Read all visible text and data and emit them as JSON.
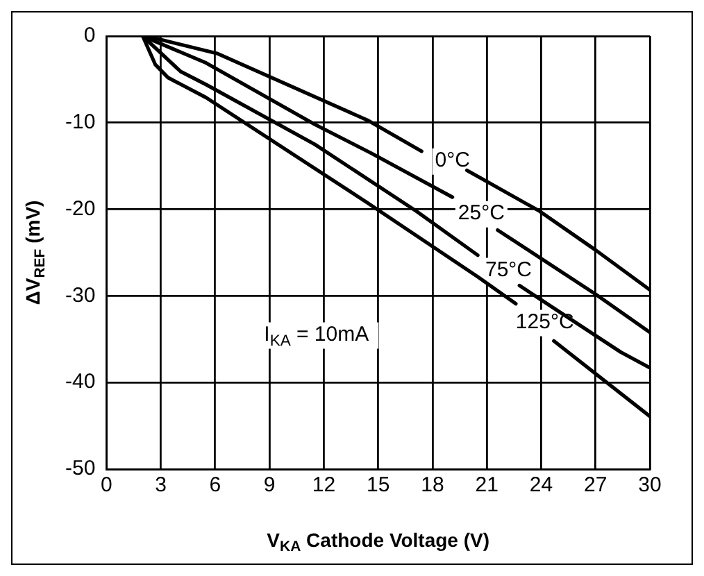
{
  "chart_data": {
    "type": "line",
    "xlabel": "V$_{KA}$ Cathode Voltage (V)",
    "ylabel": "ΔV$_{REF}$ (mV)",
    "xlim": [
      0,
      30
    ],
    "xticks": [
      0,
      3,
      6,
      9,
      12,
      15,
      18,
      21,
      24,
      27,
      30
    ],
    "ylim": [
      -50,
      0
    ],
    "yticks": [
      -50,
      -40,
      -30,
      -20,
      -10,
      0
    ],
    "grid": true,
    "line_style": "solid",
    "series": [
      {
        "color": "#000000",
        "x": [
          2.2,
          6.1,
          14.4,
          17.4,
          19.1,
          19.9,
          23.9,
          27.0,
          30
        ],
        "values": [
          0,
          -2.0,
          -9.7,
          -13.3,
          null,
          -15.5,
          -20.2,
          -24.7,
          -29.3
        ]
      },
      {
        "color": "#000000",
        "x": [
          2.0,
          5.5,
          11.5,
          14.6,
          19.1,
          20.7,
          21.6,
          27.0,
          30
        ],
        "values": [
          0,
          -3.1,
          -10.2,
          -13.5,
          -18.6,
          null,
          -22.4,
          -29.8,
          -34.2
        ]
      },
      {
        "color": "#000000",
        "x": [
          2.0,
          4.1,
          5.5,
          11.5,
          17.1,
          20.5,
          22.2,
          22.8,
          28.4,
          30
        ],
        "values": [
          0,
          -4.1,
          -5.6,
          -12.5,
          -20.2,
          -25.3,
          null,
          -28.8,
          -36.5,
          -38.3
        ]
      },
      {
        "color": "#000000",
        "x": [
          2.0,
          2.7,
          3.4,
          5.5,
          14.3,
          20.5,
          22.6,
          24.2,
          24.7,
          30
        ],
        "values": [
          0,
          -3.3,
          -4.8,
          -7.1,
          -19.1,
          -27.8,
          -30.9,
          null,
          -35.2,
          -43.9
        ]
      }
    ],
    "annotations": [
      "0°C",
      "25°C",
      "75°C",
      "125°C",
      "I$_{KA}$ = 10mA"
    ]
  }
}
